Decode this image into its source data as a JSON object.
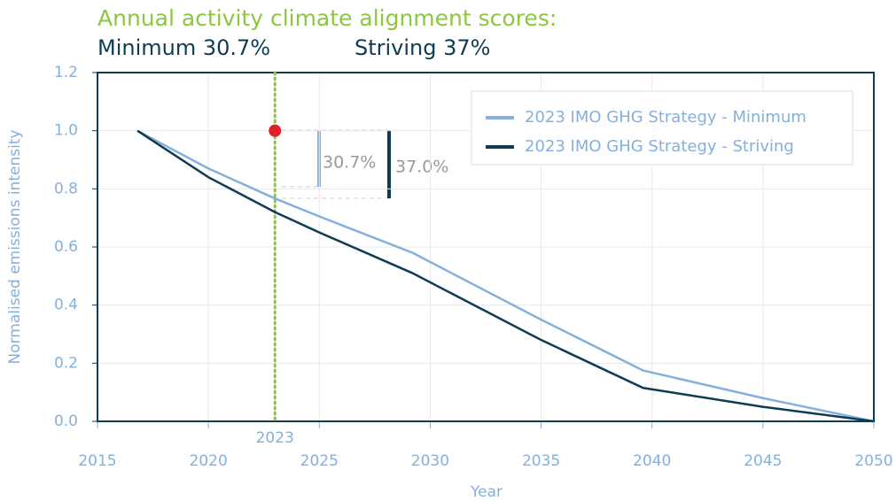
{
  "chart_data": {
    "type": "line",
    "title": "Annual activity climate alignment scores:",
    "subtitle_items": [
      "Minimum 30.7%",
      "Striving 37%"
    ],
    "xlabel": "Year",
    "ylabel": "Normalised emissions intensity",
    "x": [
      2016.8,
      2020,
      2023,
      2025,
      2029.2,
      2035,
      2039.6,
      2045,
      2050
    ],
    "series": [
      {
        "name": "2023 IMO GHG Strategy - Minimum",
        "color": "#85b0de",
        "values": [
          1.0,
          0.87,
          0.767,
          0.705,
          0.58,
          0.35,
          0.175,
          0.08,
          0.0
        ]
      },
      {
        "name": "2023 IMO GHG Strategy - Striving",
        "color": "#0f3c55",
        "values": [
          1.0,
          0.84,
          0.72,
          0.65,
          0.51,
          0.28,
          0.115,
          0.05,
          0.0
        ]
      }
    ],
    "xlim": [
      2015,
      2050
    ],
    "xticks": [
      2015,
      2020,
      2025,
      2030,
      2035,
      2040,
      2045,
      2050
    ],
    "ylim": [
      0,
      1.2
    ],
    "yticks": [
      {
        "value": 0,
        "label": "0.0"
      },
      {
        "value": 0.2,
        "label": "0.2"
      },
      {
        "value": 0.4,
        "label": "0.4"
      },
      {
        "value": 0.6,
        "label": "0.6"
      },
      {
        "value": 0.8,
        "label": "0.8"
      },
      {
        "value": 1,
        "label": "1.0"
      },
      {
        "value": 1.2,
        "label": "1.2"
      }
    ],
    "grid": true,
    "legend": "upper right",
    "vline": {
      "value": 2023,
      "label": "2023",
      "color": "#8dc63f"
    },
    "marker": {
      "x": 2023,
      "y": 1.0,
      "color": "#e3202a"
    },
    "annotations": [
      "30.7%",
      "37.0%"
    ]
  }
}
